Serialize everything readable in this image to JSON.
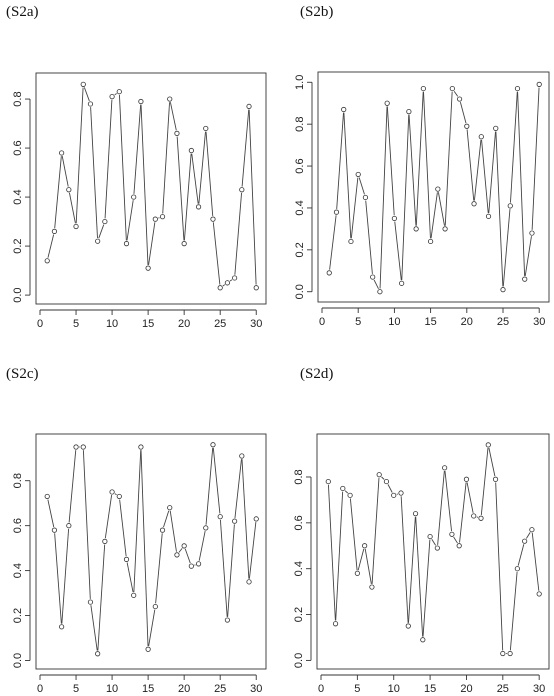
{
  "panels": [
    {
      "label": "(S2a)"
    },
    {
      "label": "(S2b)"
    },
    {
      "label": "(S2c)"
    },
    {
      "label": "(S2d)"
    }
  ],
  "chart_data": [
    {
      "type": "line",
      "title": "(S2a)",
      "xlim": [
        0,
        30.8
      ],
      "ylim": [
        -0.02,
        0.89
      ],
      "x_ticks": [
        0,
        5,
        10,
        15,
        20,
        25,
        30
      ],
      "y_ticks": [
        0.0,
        0.2,
        0.4,
        0.6,
        0.8
      ],
      "y_tick_labels": [
        "0.0",
        "0.2",
        "0.4",
        "0.6",
        "0.8"
      ],
      "markers": "open-circle",
      "x": [
        1,
        2,
        3,
        4,
        5,
        6,
        7,
        8,
        9,
        10,
        11,
        12,
        13,
        14,
        15,
        16,
        17,
        18,
        19,
        20,
        21,
        22,
        23,
        24,
        25,
        26,
        27,
        28,
        29,
        30
      ],
      "y": [
        0.14,
        0.26,
        0.58,
        0.43,
        0.28,
        0.86,
        0.78,
        0.22,
        0.3,
        0.81,
        0.83,
        0.21,
        0.4,
        0.79,
        0.11,
        0.31,
        0.32,
        0.8,
        0.66,
        0.21,
        0.59,
        0.36,
        0.68,
        0.31,
        0.03,
        0.05,
        0.07,
        0.43,
        0.77,
        0.03
      ]
    },
    {
      "type": "line",
      "title": "(S2b)",
      "xlim": [
        0,
        30.8
      ],
      "ylim": [
        -0.03,
        1.03
      ],
      "x_ticks": [
        0,
        5,
        10,
        15,
        20,
        25,
        30
      ],
      "y_ticks": [
        0.0,
        0.2,
        0.4,
        0.6,
        0.8,
        1.0
      ],
      "y_tick_labels": [
        "0.0",
        "0.2",
        "0.4",
        "0.6",
        "0.8",
        "1.0"
      ],
      "markers": "open-circle",
      "x": [
        1,
        2,
        3,
        4,
        5,
        6,
        7,
        8,
        9,
        10,
        11,
        12,
        13,
        14,
        15,
        16,
        17,
        18,
        19,
        20,
        21,
        22,
        23,
        24,
        25,
        26,
        27,
        28,
        29,
        30
      ],
      "y": [
        0.09,
        0.38,
        0.87,
        0.24,
        0.56,
        0.45,
        0.07,
        0.0,
        0.9,
        0.35,
        0.04,
        0.86,
        0.3,
        0.97,
        0.24,
        0.49,
        0.3,
        0.97,
        0.92,
        0.79,
        0.42,
        0.74,
        0.36,
        0.78,
        0.01,
        0.41,
        0.97,
        0.06,
        0.28,
        0.99
      ]
    },
    {
      "type": "line",
      "title": "(S2c)",
      "xlim": [
        0,
        30.8
      ],
      "ylim": [
        -0.02,
        0.99
      ],
      "x_ticks": [
        0,
        5,
        10,
        15,
        20,
        25,
        30
      ],
      "y_ticks": [
        0.0,
        0.2,
        0.4,
        0.6,
        0.8
      ],
      "y_tick_labels": [
        "0.0",
        "0.2",
        "0.4",
        "0.6",
        "0.8"
      ],
      "markers": "open-circle",
      "x": [
        1,
        2,
        3,
        4,
        5,
        6,
        7,
        8,
        9,
        10,
        11,
        12,
        13,
        14,
        15,
        16,
        17,
        18,
        19,
        20,
        21,
        22,
        23,
        24,
        25,
        26,
        27,
        28,
        29,
        30
      ],
      "y": [
        0.73,
        0.58,
        0.15,
        0.6,
        0.95,
        0.95,
        0.26,
        0.03,
        0.53,
        0.75,
        0.73,
        0.45,
        0.29,
        0.95,
        0.05,
        0.24,
        0.58,
        0.68,
        0.47,
        0.51,
        0.42,
        0.43,
        0.59,
        0.96,
        0.64,
        0.18,
        0.62,
        0.91,
        0.35,
        0.63
      ]
    },
    {
      "type": "line",
      "title": "(S2d)",
      "xlim": [
        0,
        30.8
      ],
      "ylim": [
        -0.02,
        0.97
      ],
      "x_ticks": [
        0,
        5,
        10,
        15,
        20,
        25,
        30
      ],
      "y_ticks": [
        0.0,
        0.2,
        0.4,
        0.6,
        0.8
      ],
      "y_tick_labels": [
        "0.0",
        "0.2",
        "0.4",
        "0.6",
        "0.8"
      ],
      "markers": "open-circle",
      "x": [
        1,
        2,
        3,
        4,
        5,
        6,
        7,
        8,
        9,
        10,
        11,
        12,
        13,
        14,
        15,
        16,
        17,
        18,
        19,
        20,
        21,
        22,
        23,
        24,
        25,
        26,
        27,
        28,
        29,
        30
      ],
      "y": [
        0.78,
        0.16,
        0.75,
        0.72,
        0.38,
        0.5,
        0.32,
        0.81,
        0.78,
        0.72,
        0.73,
        0.15,
        0.64,
        0.09,
        0.54,
        0.49,
        0.84,
        0.55,
        0.5,
        0.79,
        0.63,
        0.62,
        0.94,
        0.79,
        0.03,
        0.03,
        0.4,
        0.52,
        0.57,
        0.29
      ]
    }
  ]
}
